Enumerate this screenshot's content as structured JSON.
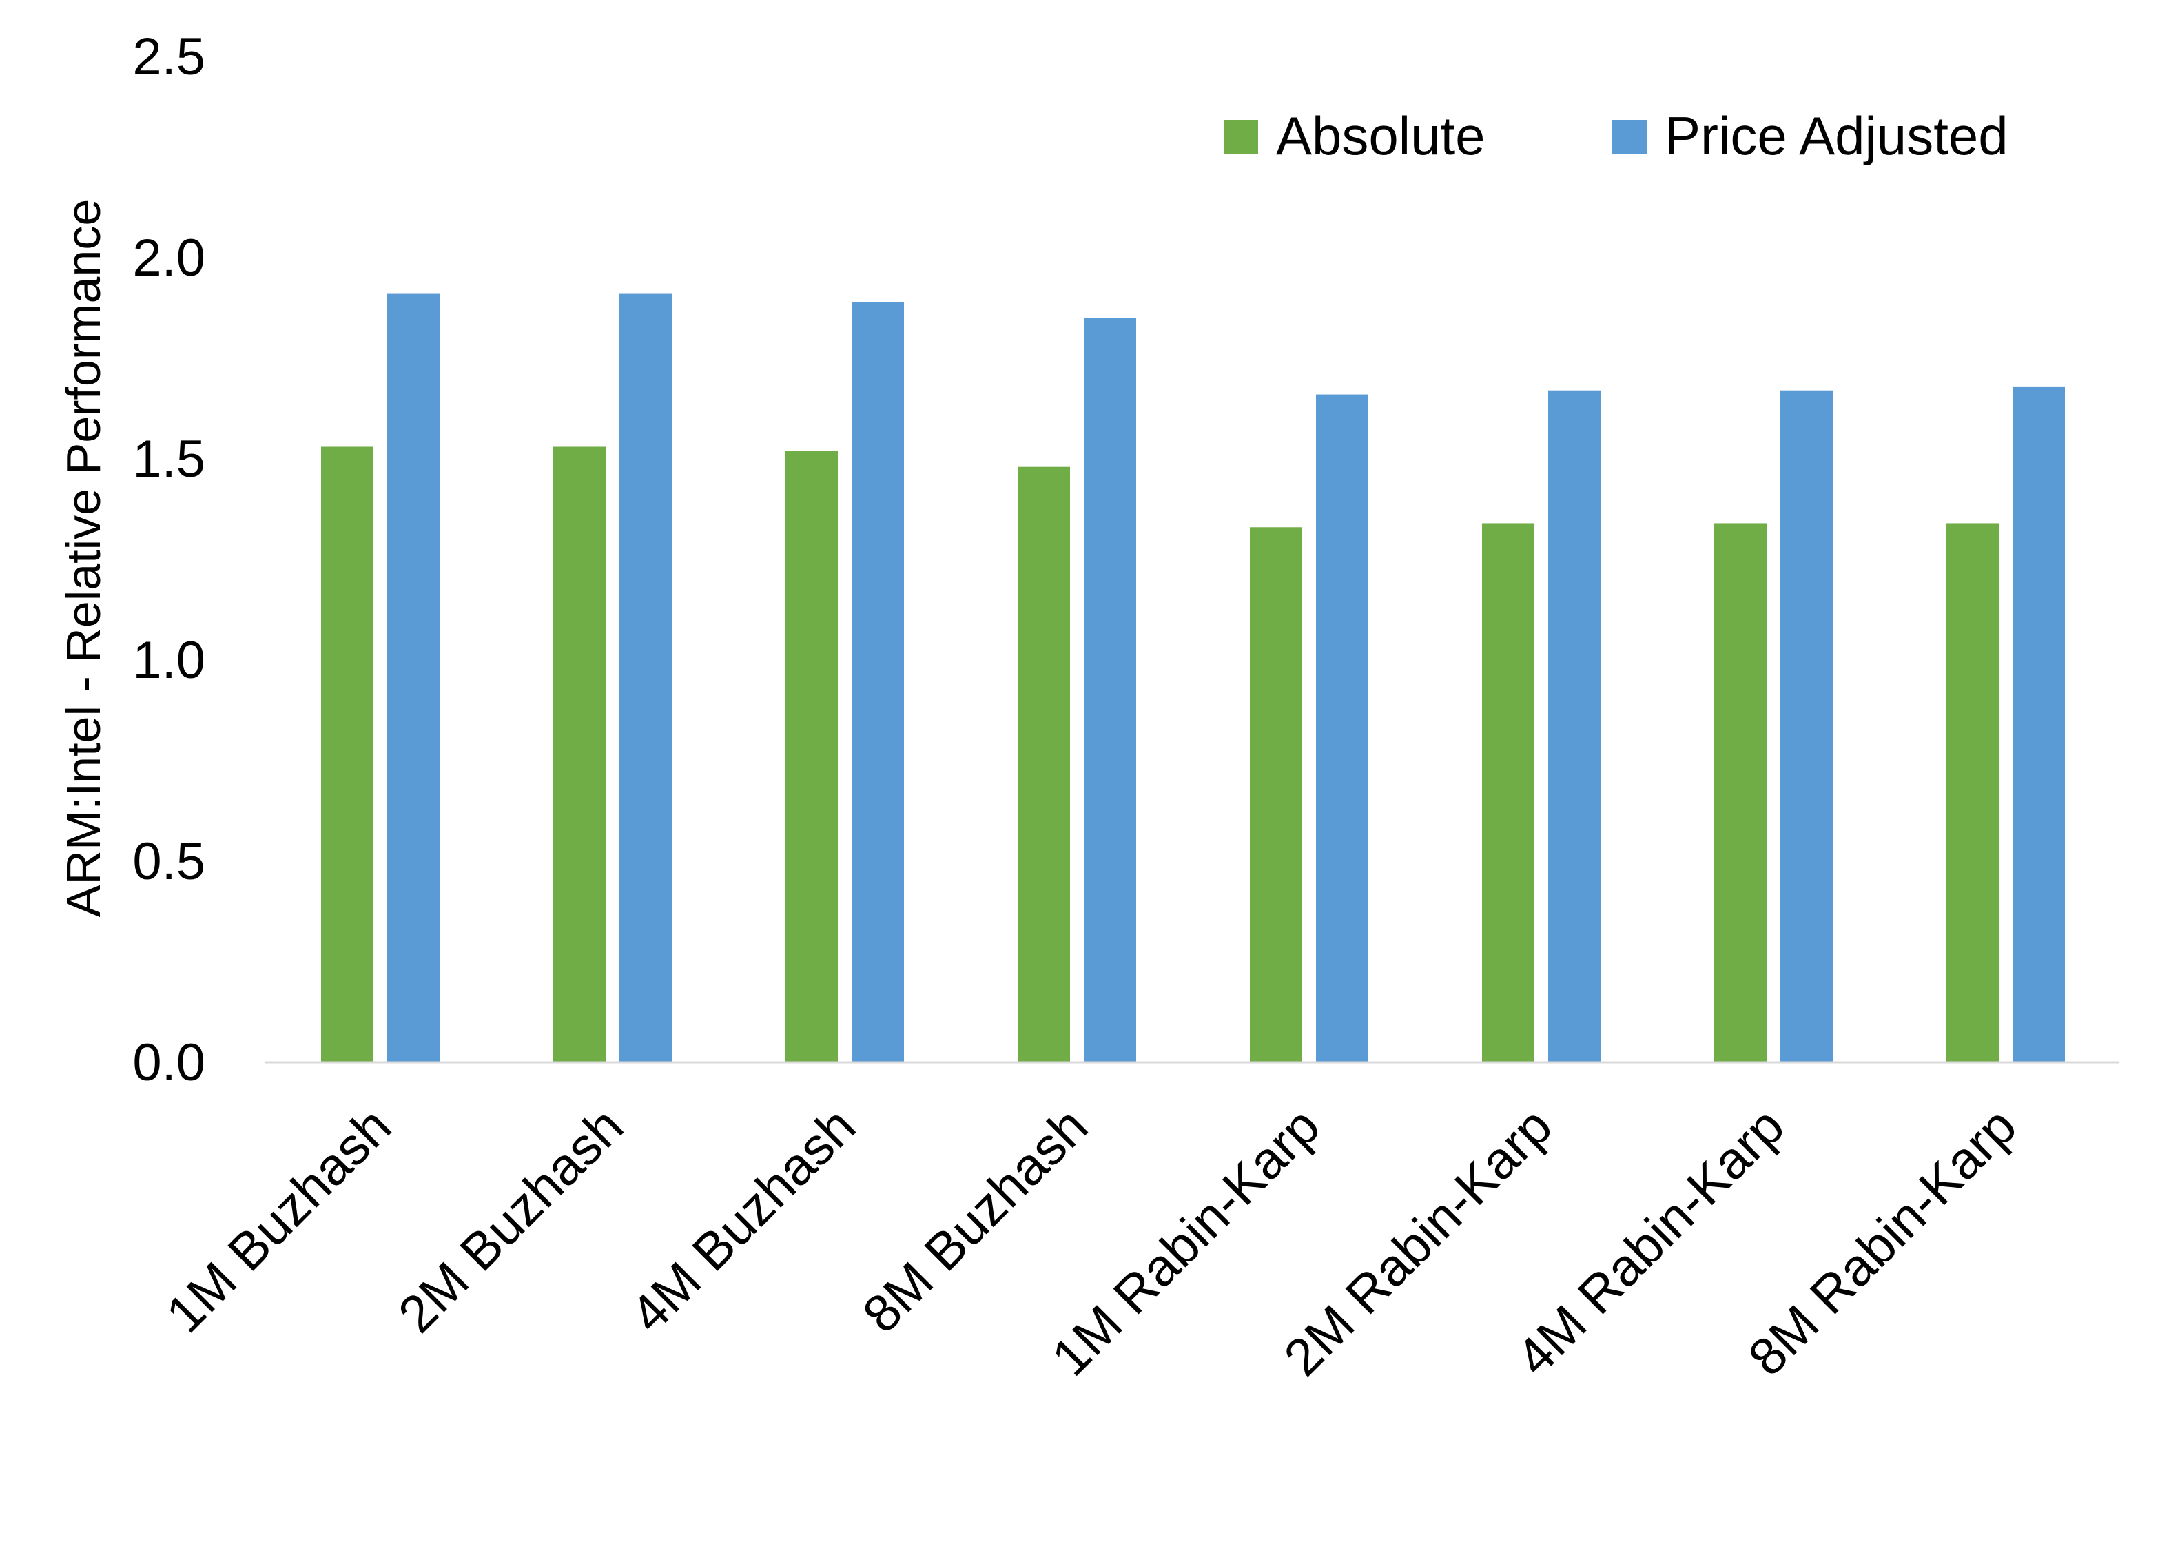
{
  "chart_data": {
    "type": "bar",
    "title": "",
    "xlabel": "",
    "ylabel": "ARM:Intel - Relative Performance",
    "ylim": [
      0,
      2.5
    ],
    "yticks": [
      "0.0",
      "0.5",
      "1.0",
      "1.5",
      "2.0",
      "2.5"
    ],
    "grid": false,
    "legend_position": "top-right",
    "categories": [
      "1M Buzhash",
      "2M Buzhash",
      "4M Buzhash",
      "8M Buzhash",
      "1M Rabin-Karp",
      "2M Rabin-Karp",
      "4M Rabin-Karp",
      "8M Rabin-Karp"
    ],
    "series": [
      {
        "name": "Absolute",
        "color": "#70AD47",
        "values": [
          1.53,
          1.53,
          1.52,
          1.48,
          1.33,
          1.34,
          1.34,
          1.34
        ]
      },
      {
        "name": "Price Adjusted",
        "color": "#5B9BD5",
        "values": [
          1.91,
          1.91,
          1.89,
          1.85,
          1.66,
          1.67,
          1.67,
          1.68
        ]
      }
    ]
  }
}
